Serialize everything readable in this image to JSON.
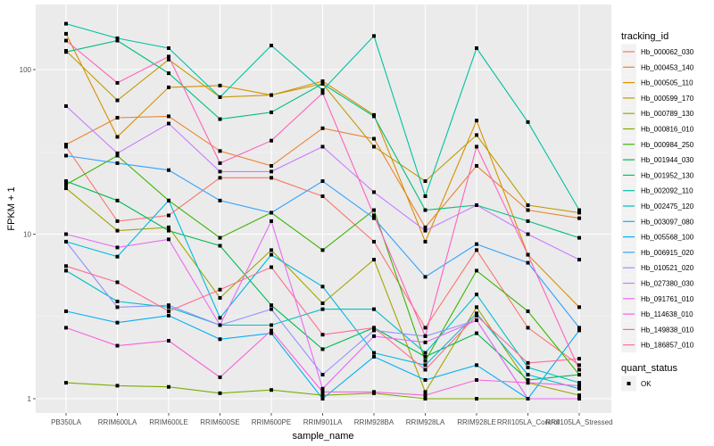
{
  "chart_data": {
    "type": "line",
    "title": "",
    "xlabel": "sample_name",
    "ylabel": "FPKM + 1",
    "y_scale": "log10",
    "ylim": [
      0.9,
      200
    ],
    "y_ticks": [
      1,
      10,
      100
    ],
    "y_tick_labels": [
      "1",
      "10",
      "100"
    ],
    "grid": true,
    "legend_position": "right",
    "categories": [
      "PB350LA",
      "RRIM600LA",
      "RRIM600LE",
      "RRIM600SE",
      "RRIM600PE",
      "RRIM901LA",
      "RRIM928BA",
      "RRIM928LA",
      "RRIM928LE",
      "RRII105LA_Control",
      "RRII105LA_Stressed"
    ],
    "legend_title": "tracking_id",
    "shape_legend_title": "quant_status",
    "shape_legend_items": [
      "OK"
    ],
    "series": [
      {
        "name": "Hb_000062_030",
        "color": "#F8766D",
        "values": [
          34,
          12,
          13,
          22,
          22,
          17,
          9,
          2.7,
          8,
          2.7,
          1.6
        ]
      },
      {
        "name": "Hb_000453_140",
        "color": "#EA8331",
        "values": [
          35,
          51,
          52,
          32,
          26,
          44,
          38,
          11,
          26,
          14,
          12.5
        ]
      },
      {
        "name": "Hb_000505_110",
        "color": "#D89000",
        "values": [
          165,
          39,
          78,
          80,
          70,
          85,
          53,
          9,
          49,
          7.5,
          3.6
        ]
      },
      {
        "name": "Hb_000599_170",
        "color": "#C09B00",
        "values": [
          130,
          65,
          115,
          68,
          70,
          82,
          34,
          21,
          40,
          15,
          13.5
        ]
      },
      {
        "name": "Hb_000789_130",
        "color": "#A3A500",
        "values": [
          19,
          10.5,
          11,
          4.1,
          8,
          3.8,
          7,
          1.1,
          3.6,
          1.25,
          1.05
        ]
      },
      {
        "name": "Hb_000816_010",
        "color": "#7CAE00",
        "values": [
          1.25,
          1.2,
          1.18,
          1.08,
          1.13,
          1.05,
          1.08,
          1,
          1,
          1,
          1
        ]
      },
      {
        "name": "Hb_000984_250",
        "color": "#39B600",
        "values": [
          20,
          30,
          16,
          9.5,
          13.5,
          8,
          14,
          1.7,
          6,
          3.4,
          1.4
        ]
      },
      {
        "name": "Hb_001944_030",
        "color": "#00BB4E",
        "values": [
          21,
          16,
          10.5,
          8.5,
          3.7,
          2,
          2.7,
          1.8,
          2.5,
          1.3,
          1.4
        ]
      },
      {
        "name": "Hb_001952_130",
        "color": "#00BF7D",
        "values": [
          128,
          150,
          95,
          50,
          55,
          82,
          52,
          14,
          15,
          12,
          9.5
        ]
      },
      {
        "name": "Hb_002092_110",
        "color": "#00C1A3",
        "values": [
          190,
          155,
          135,
          68,
          140,
          75,
          160,
          17,
          135,
          48,
          14
        ]
      },
      {
        "name": "Hb_002475_120",
        "color": "#00BFC4",
        "values": [
          6,
          3.9,
          3.6,
          2.8,
          2.8,
          3.5,
          3.5,
          1.9,
          4.3,
          1.55,
          1.25
        ]
      },
      {
        "name": "Hb_003097_080",
        "color": "#00BAE0",
        "values": [
          9,
          7.3,
          16,
          3.1,
          7.5,
          4.8,
          1.9,
          1.6,
          3.3,
          1.4,
          1.15
        ]
      },
      {
        "name": "Hb_005568_100",
        "color": "#00B0F6",
        "values": [
          3.4,
          2.9,
          3.2,
          2.3,
          2.5,
          1,
          1.8,
          1.3,
          1.6,
          1,
          2.6
        ]
      },
      {
        "name": "Hb_006915_020",
        "color": "#35A2FF",
        "values": [
          30,
          27,
          24.5,
          16,
          13.5,
          21,
          12.5,
          5.5,
          8.7,
          6.7,
          2.7
        ]
      },
      {
        "name": "Hb_010521_020",
        "color": "#9590FF",
        "values": [
          9,
          3.6,
          3.7,
          2.8,
          3.5,
          1.4,
          2.6,
          2.4,
          3,
          1,
          1
        ]
      },
      {
        "name": "Hb_027380_030",
        "color": "#C77CFF",
        "values": [
          60,
          31,
          47,
          24,
          24,
          34,
          18,
          10.5,
          15,
          10,
          7
        ]
      },
      {
        "name": "Hb_091761_010",
        "color": "#E76BF3",
        "values": [
          10,
          8.3,
          9.3,
          2.8,
          12,
          1.15,
          2.4,
          2.2,
          3,
          1,
          1
        ]
      },
      {
        "name": "Hb_114638_010",
        "color": "#FA62DB",
        "values": [
          2.7,
          2.1,
          2.25,
          1.35,
          2.6,
          1.1,
          1.1,
          1.05,
          1.3,
          1.25,
          1.2
        ]
      },
      {
        "name": "Hb_149838_010",
        "color": "#FF62BC",
        "values": [
          150,
          83,
          120,
          27,
          37,
          72,
          13,
          2.4,
          34,
          7.5,
          1.5
        ]
      },
      {
        "name": "Hb_186857_010",
        "color": "#FF6C91",
        "values": [
          6.4,
          5.1,
          3.4,
          4.6,
          6.3,
          2.45,
          2.7,
          1.5,
          3.2,
          1.65,
          1.75
        ]
      }
    ]
  }
}
